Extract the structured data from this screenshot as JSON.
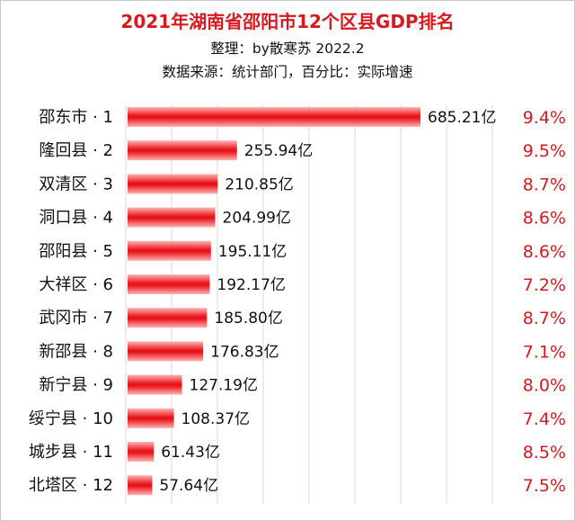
{
  "chart_data": {
    "type": "bar",
    "orientation": "horizontal",
    "title": "2021年湖南省邵阳市12个区县GDP排名",
    "subtitle_lines": [
      "整理：by散寒苏 2022.2",
      "数据来源：统计部门，百分比：实际增速"
    ],
    "categories": [
      "邵东市 · 1",
      "隆回县 · 2",
      "双清区 · 3",
      "洞口县 · 4",
      "邵阳县 · 5",
      "大祥区 · 6",
      "武冈市 · 7",
      "新邵县 · 8",
      "新宁县 · 9",
      "绥宁县 · 10",
      "城步县 · 11",
      "北塔区 · 12"
    ],
    "series": [
      {
        "name": "GDP",
        "values": [
          685.21,
          255.94,
          210.85,
          204.99,
          195.11,
          192.17,
          185.8,
          176.83,
          127.19,
          108.37,
          61.43,
          57.64
        ],
        "labels": [
          "685.21亿",
          "255.94亿",
          "210.85亿",
          "204.99亿",
          "195.11亿",
          "192.17亿",
          "185.80亿",
          "176.83亿",
          "127.19亿",
          "108.37亿",
          "61.43亿",
          "57.64亿"
        ]
      },
      {
        "name": "实际增速",
        "values": [
          9.4,
          9.5,
          8.7,
          8.6,
          8.6,
          7.2,
          8.7,
          7.1,
          8.0,
          7.4,
          8.5,
          7.5
        ],
        "labels": [
          "9.4%",
          "9.5%",
          "8.7%",
          "8.6%",
          "8.6%",
          "7.2%",
          "8.7%",
          "7.1%",
          "8.0%",
          "7.4%",
          "8.5%",
          "7.5%"
        ]
      }
    ],
    "xlim": [
      0,
      685.21
    ],
    "grid": true,
    "colors": {
      "bar": "#e8141b",
      "bar_light": "#ffb3b3",
      "accent": "#d71920",
      "grid": "#d9d9d9"
    }
  }
}
